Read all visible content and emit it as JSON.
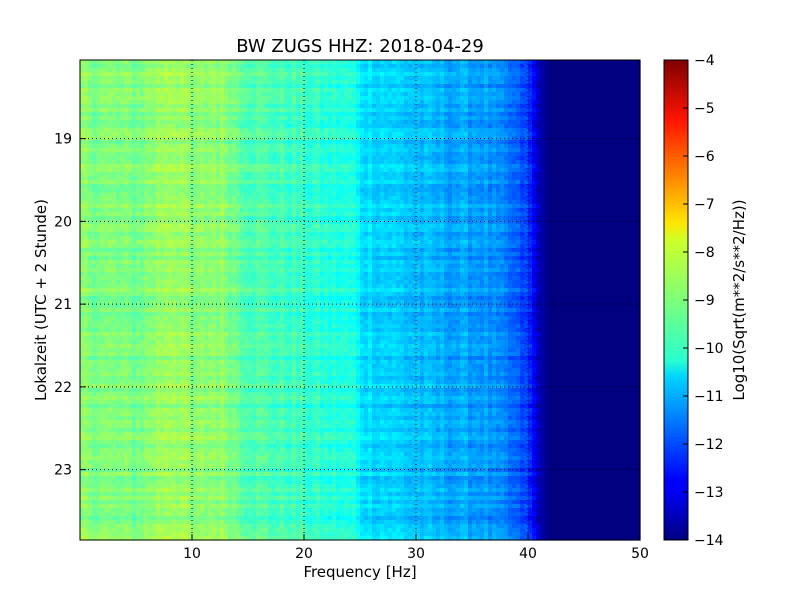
{
  "chart_data": {
    "type": "heatmap",
    "title": "BW ZUGS HHZ: 2018-04-29",
    "xlabel": "Frequency [Hz]",
    "ylabel": "Lokalzeit (UTC + 2 Stunde)",
    "colorbar_label": "Log10(Sqrt(m**2/s**2/Hz))",
    "colormap": "jet",
    "grid": true,
    "xlim": [
      0,
      50
    ],
    "ylim_hours": [
      18.05,
      23.85
    ],
    "x_ticks": [
      10,
      20,
      30,
      40,
      50
    ],
    "x_tick_labels": [
      "10",
      "20",
      "30",
      "40",
      "50"
    ],
    "y_ticks": [
      19,
      20,
      21,
      22,
      23
    ],
    "y_tick_labels": [
      "19",
      "20",
      "21",
      "22",
      "23"
    ],
    "color_range": [
      -14,
      -4
    ],
    "colorbar_ticks": [
      -4,
      -5,
      -6,
      -7,
      -8,
      -9,
      -10,
      -11,
      -12,
      -13,
      -14
    ],
    "colorbar_tick_labels": [
      "−4",
      "−5",
      "−6",
      "−7",
      "−8",
      "−9",
      "−10",
      "−11",
      "−12",
      "−13",
      "−14"
    ],
    "spectrum_profile": {
      "frequency_hz": [
        0,
        2,
        5,
        8,
        9,
        10,
        12,
        13,
        15,
        18,
        20,
        22,
        24.5,
        25,
        28,
        30,
        33,
        36,
        38,
        40,
        41,
        42,
        50
      ],
      "log_amplitude": [
        -8.9,
        -9.0,
        -9.1,
        -8.6,
        -8.7,
        -9.0,
        -8.8,
        -8.9,
        -9.4,
        -9.6,
        -9.7,
        -9.9,
        -10.0,
        -10.5,
        -10.7,
        -10.9,
        -11.1,
        -11.2,
        -11.6,
        -12.2,
        -13.5,
        -14.0,
        -14.0
      ]
    }
  }
}
